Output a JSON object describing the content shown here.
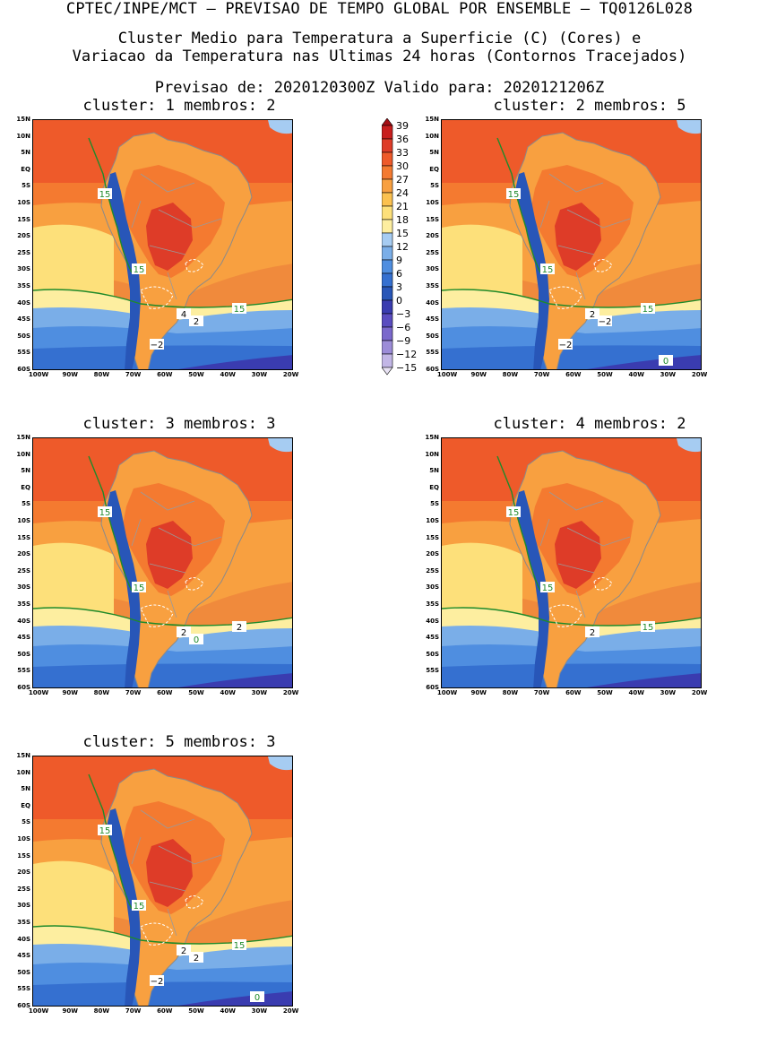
{
  "header": {
    "line1": "CPTEC/INPE/MCT — PREVISAO DE TEMPO GLOBAL POR ENSEMBLE — TQ0126L028",
    "line2": "Cluster Medio para Temperatura a Superficie (C) (Cores) e",
    "line3": "Variacao da Temperatura nas Ultimas 24 horas (Contornos Tracejados)",
    "line4": "Previsao de: 2020120300Z   Valido para: 2020121206Z"
  },
  "lat_ticks": [
    "15N",
    "10N",
    "5N",
    "EQ",
    "5S",
    "10S",
    "15S",
    "20S",
    "25S",
    "30S",
    "35S",
    "40S",
    "45S",
    "50S",
    "55S",
    "60S"
  ],
  "lon_ticks": [
    "100W",
    "90W",
    "80W",
    "70W",
    "60W",
    "50W",
    "40W",
    "30W",
    "20W"
  ],
  "colorbar": {
    "labels": [
      "39",
      "36",
      "33",
      "30",
      "27",
      "24",
      "21",
      "18",
      "15",
      "12",
      "9",
      "6",
      "3",
      "0",
      "−3",
      "−6",
      "−9",
      "−12",
      "−15"
    ],
    "colors": [
      "#a50f15",
      "#c81e1e",
      "#de3c28",
      "#ee5a2a",
      "#f47a30",
      "#f8a040",
      "#fbc14f",
      "#fde07a",
      "#fdeea0",
      "#a6ccf2",
      "#7aaee8",
      "#4f8ee0",
      "#3570d0",
      "#2856b8",
      "#3a3cb0",
      "#5a4cc0",
      "#7a68cc",
      "#9c8cd8",
      "#c2b6e6",
      "#e8e2f4"
    ]
  },
  "panels": [
    {
      "title": "cluster: 1   membros: 2",
      "labels": [
        {
          "t": "15",
          "c": "green"
        },
        {
          "t": "15",
          "c": "green"
        },
        {
          "t": "15",
          "c": "green"
        },
        {
          "t": "4",
          "c": "black"
        },
        {
          "t": "2",
          "c": "black"
        },
        {
          "t": "−2",
          "c": "black"
        }
      ]
    },
    {
      "title": "cluster: 2   membros: 5",
      "labels": [
        {
          "t": "15",
          "c": "green"
        },
        {
          "t": "15",
          "c": "green"
        },
        {
          "t": "15",
          "c": "green"
        },
        {
          "t": "2",
          "c": "black"
        },
        {
          "t": "−2",
          "c": "black"
        },
        {
          "t": "−2",
          "c": "black"
        },
        {
          "t": "0",
          "c": "green"
        }
      ]
    },
    {
      "title": "cluster: 3   membros: 3",
      "labels": [
        {
          "t": "15",
          "c": "green"
        },
        {
          "t": "15",
          "c": "green"
        },
        {
          "t": "2",
          "c": "black"
        },
        {
          "t": "2",
          "c": "black"
        },
        {
          "t": "0",
          "c": "green"
        }
      ]
    },
    {
      "title": "cluster: 4   membros: 2",
      "labels": [
        {
          "t": "15",
          "c": "green"
        },
        {
          "t": "15",
          "c": "green"
        },
        {
          "t": "15",
          "c": "green"
        },
        {
          "t": "2",
          "c": "black"
        }
      ]
    },
    {
      "title": "cluster: 5   membros: 3",
      "labels": [
        {
          "t": "15",
          "c": "green"
        },
        {
          "t": "15",
          "c": "green"
        },
        {
          "t": "15",
          "c": "green"
        },
        {
          "t": "2",
          "c": "black"
        },
        {
          "t": "2",
          "c": "black"
        },
        {
          "t": "−2",
          "c": "black"
        },
        {
          "t": "0",
          "c": "green"
        }
      ]
    }
  ]
}
